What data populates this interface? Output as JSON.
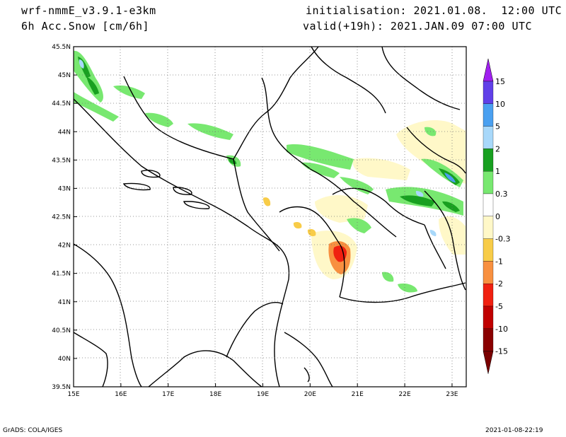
{
  "header": {
    "model": "wrf-nmmE_v3.9.1-e3km",
    "field": "6h Acc.Snow [cm/6h]",
    "init": "initialisation: 2021.01.08.  12:00 UTC",
    "valid": "valid(+19h): 2021.JAN.09 07:00 UTC"
  },
  "map": {
    "lon_labels": [
      "15E",
      "16E",
      "17E",
      "18E",
      "19E",
      "20E",
      "21E",
      "22E",
      "23E"
    ],
    "lat_labels": [
      "45.5N",
      "45N",
      "44.5N",
      "44N",
      "43.5N",
      "43N",
      "42.5N",
      "42N",
      "41.5N",
      "41N",
      "40.5N",
      "40N",
      "39.5N"
    ],
    "lon_range": [
      15,
      23.3
    ],
    "lat_range": [
      39.5,
      45.5
    ],
    "grid": "dotted"
  },
  "legend": {
    "levels": [
      "15",
      "10",
      "5",
      "2",
      "1",
      "0.3",
      "0",
      "-0.3",
      "-1",
      "-2",
      "-5",
      "-10",
      "-15"
    ],
    "colors": [
      "#6040e8",
      "#4aa0f0",
      "#a8d8fa",
      "#18a020",
      "#78e870",
      "#ffffff",
      "#ffffff",
      "#fff8c8",
      "#f8cc48",
      "#f89040",
      "#f02010",
      "#c00000",
      "#8a0000"
    ],
    "top_arrow_color": "#a020f0",
    "bottom_arrow_color": "#7a0000"
  },
  "footer": {
    "left": "GrADS: COLA/IGES",
    "right": "2021-01-08-22:19"
  }
}
